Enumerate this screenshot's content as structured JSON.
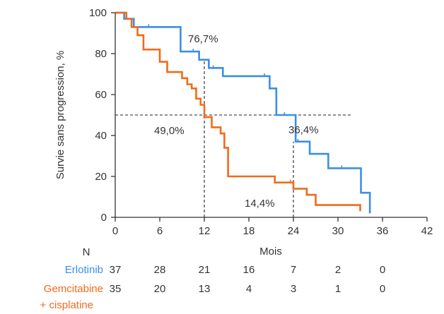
{
  "chart_data": {
    "type": "line",
    "subtype": "kaplan-meier",
    "title": "",
    "xlabel": "Mois",
    "ylabel": "Survie sans progression, %",
    "xlim": [
      0,
      42
    ],
    "ylim": [
      0,
      100
    ],
    "xticks": [
      0,
      6,
      12,
      18,
      24,
      30,
      36,
      42
    ],
    "yticks": [
      0,
      20,
      40,
      60,
      80,
      100
    ],
    "grid": false,
    "legend": "none",
    "series": [
      {
        "name": "Erlotinib",
        "color": "#3b8ee8",
        "x": [
          0,
          1.2,
          2.5,
          8.8,
          11.3,
          12.6,
          14.5,
          20.8,
          21.7,
          24.3,
          26.2,
          28.7,
          33.1,
          34.3
        ],
        "y": [
          100,
          97,
          93,
          81,
          77,
          73,
          69,
          63,
          50,
          37,
          31,
          24,
          12,
          2
        ],
        "censor_x": [
          4.5,
          10.5,
          13.2,
          20.1,
          22.8,
          24.6,
          30.5
        ]
      },
      {
        "name": "Gemcitabine + cisplatine",
        "color": "#f26a1b",
        "x": [
          0,
          1.5,
          2.2,
          3.0,
          3.8,
          6.0,
          7.0,
          9.0,
          9.7,
          10.3,
          10.9,
          11.5,
          12.0,
          13.0,
          14.2,
          14.7,
          15.2,
          21.5,
          24.0,
          25.8,
          27.0,
          33.0
        ],
        "y": [
          100,
          97,
          93,
          89,
          82,
          76,
          71,
          68,
          65,
          63,
          58,
          55,
          49,
          44,
          41,
          34,
          20,
          17,
          14,
          11,
          6,
          3
        ],
        "censor_x": [
          23.6
        ]
      }
    ],
    "reference_lines": [
      {
        "kind": "horizontal",
        "y": 50,
        "x_from": 0,
        "x_to": 31.8
      },
      {
        "kind": "vertical",
        "x": 12,
        "y_from": 0,
        "y_to": 77
      },
      {
        "kind": "vertical",
        "x": 24,
        "y_from": 0,
        "y_to": 37
      }
    ],
    "annotations": [
      {
        "id": "erl12",
        "text": "76,7%"
      },
      {
        "id": "gem12",
        "text": "49,0%"
      },
      {
        "id": "erl24",
        "text": "36,4%"
      },
      {
        "id": "gem24",
        "text": "14,4%"
      }
    ],
    "risk_table": {
      "header": "N",
      "rows": [
        {
          "label": "Erlotinib",
          "color": "#3b8ee8",
          "values": [
            "37",
            "28",
            "21",
            "16",
            "7",
            "2",
            "0"
          ]
        },
        {
          "label": "Gemcitabine",
          "label2": "+ cisplatine",
          "color": "#f26a1b",
          "values": [
            "35",
            "20",
            "13",
            "4",
            "3",
            "1",
            "0"
          ]
        }
      ]
    }
  }
}
